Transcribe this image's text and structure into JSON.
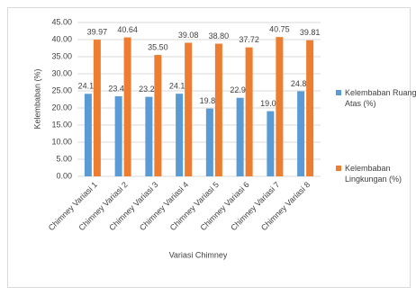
{
  "chart_data": {
    "type": "bar",
    "x_label": "Variasi Chimney",
    "y_label": "Kelembaban (%)",
    "categories": [
      "Chimney Variasi 1",
      "Chimney Variasi 2",
      "Chimney Variasi 3",
      "Chimney Variasi 4",
      "Chimney Variasi 5",
      "Chimney Variasi 6",
      "Chimney Variasi 7",
      "Chimney Variasi 8"
    ],
    "series": [
      {
        "name": "Kelembaban Ruang Atas (%)",
        "color": "#5b9bd5",
        "values": [
          24.14,
          23.42,
          23.25,
          24.17,
          19.83,
          22.97,
          19.06,
          24.88
        ],
        "value_labels": [
          "24.14",
          "23.42",
          "23.25",
          "24.17",
          "19.83",
          "22.97",
          "19.06",
          "24.88"
        ]
      },
      {
        "name": "Kelembaban Lingkungan (%)",
        "color": "#ed7d31",
        "values": [
          39.97,
          40.64,
          35.5,
          39.08,
          38.8,
          37.72,
          40.75,
          39.81
        ],
        "value_labels": [
          "39.97",
          "40.64",
          "35.50",
          "39.08",
          "38.80",
          "37.72",
          "40.75",
          "39.81"
        ]
      }
    ],
    "ylim": [
      0,
      45
    ],
    "yticks": [
      {
        "value": 0,
        "label": "0.00"
      },
      {
        "value": 5,
        "label": "5.00"
      },
      {
        "value": 10,
        "label": "10.00"
      },
      {
        "value": 15,
        "label": "15.00"
      },
      {
        "value": 20,
        "label": "20.00"
      },
      {
        "value": 25,
        "label": "25.00"
      },
      {
        "value": 30,
        "label": "30.00"
      },
      {
        "value": 35,
        "label": "35.00"
      },
      {
        "value": 40,
        "label": "40.00"
      },
      {
        "value": 45,
        "label": "45.00"
      }
    ],
    "legend": "right"
  }
}
